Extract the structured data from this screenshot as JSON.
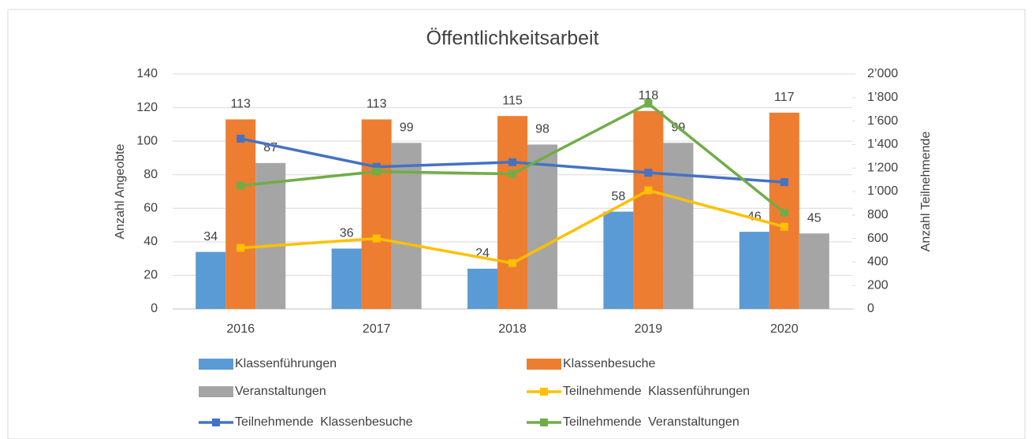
{
  "chart_data": {
    "type": "bar",
    "title": "Öffentlichkeitsarbeit",
    "ylabel": "Anzahl Angeobte",
    "y2label": "Anzahl Teilnehmende",
    "categories": [
      "2016",
      "2017",
      "2018",
      "2019",
      "2020"
    ],
    "ylim": [
      0,
      140
    ],
    "yticks": [
      0,
      20,
      40,
      60,
      80,
      100,
      120,
      140
    ],
    "y2lim": [
      0,
      2000
    ],
    "y2ticks": [
      0,
      200,
      400,
      600,
      800,
      {
        "value": 1000,
        "label": "1’000"
      },
      {
        "value": 1200,
        "label": "1’200"
      },
      {
        "value": 1400,
        "label": "1’400"
      },
      {
        "value": 1600,
        "label": "1’600"
      },
      {
        "value": 1800,
        "label": "1’800"
      },
      {
        "value": 2000,
        "label": "2’000"
      }
    ],
    "grid": true,
    "legend": "bottom",
    "series": [
      {
        "name": "Klassenführungen",
        "type": "bar",
        "color": "#5b9bd5",
        "values": [
          34,
          36,
          24,
          58,
          46
        ]
      },
      {
        "name": "Klassenbesuche",
        "type": "bar",
        "color": "#ed7d31",
        "values": [
          113,
          113,
          115,
          118,
          117
        ]
      },
      {
        "name": "Veranstaltungen",
        "type": "bar",
        "color": "#a5a5a5",
        "values": [
          87,
          99,
          98,
          99,
          45
        ]
      },
      {
        "name": "Teilnehmende Klassenführungen",
        "type": "line",
        "axis": "y2",
        "color": "#ffc000",
        "values": [
          520,
          600,
          390,
          1010,
          700
        ]
      },
      {
        "name": "Teilnehmende Klassenbesuche",
        "type": "line",
        "axis": "y2",
        "color": "#4472c4",
        "values": [
          1450,
          1210,
          1250,
          1160,
          1080
        ]
      },
      {
        "name": "Teilnehmende Veranstaltungen",
        "type": "line",
        "axis": "y2",
        "color": "#70ad47",
        "values": [
          1050,
          1170,
          1150,
          1750,
          820
        ]
      }
    ]
  }
}
